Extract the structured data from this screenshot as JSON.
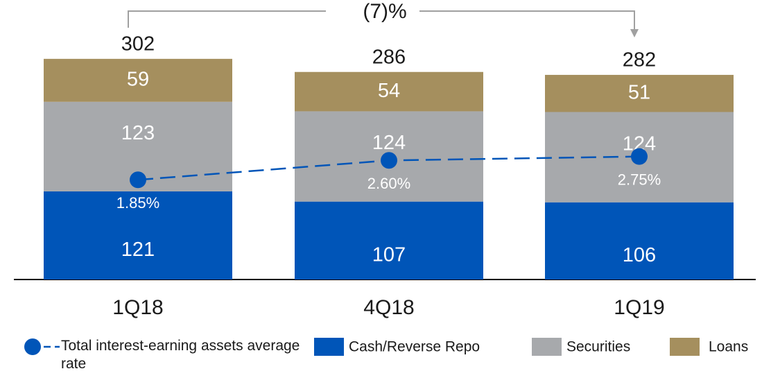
{
  "chart_data": {
    "type": "bar",
    "stacked": true,
    "annotation": "(7)%",
    "categories": [
      "1Q18",
      "4Q18",
      "1Q19"
    ],
    "totals": [
      302,
      286,
      282
    ],
    "series": [
      {
        "name": "Cash/Reverse Repo",
        "color": "#0055b8",
        "values": [
          121,
          107,
          106
        ]
      },
      {
        "name": "Securities",
        "color": "#a7a9ac",
        "values": [
          123,
          124,
          124
        ]
      },
      {
        "name": "Loans",
        "color": "#a58f5e",
        "values": [
          59,
          54,
          51
        ]
      },
      {
        "name": "Total interest-earning assets average rate",
        "type": "line",
        "axis": "y2",
        "color": "#0055b8",
        "values": [
          1.85,
          2.6,
          2.75
        ],
        "value_labels": [
          "1.85%",
          "2.60%",
          "2.75%"
        ]
      }
    ],
    "ylim": [
      0,
      320
    ],
    "y2lim": [
      -2,
      7
    ]
  }
}
